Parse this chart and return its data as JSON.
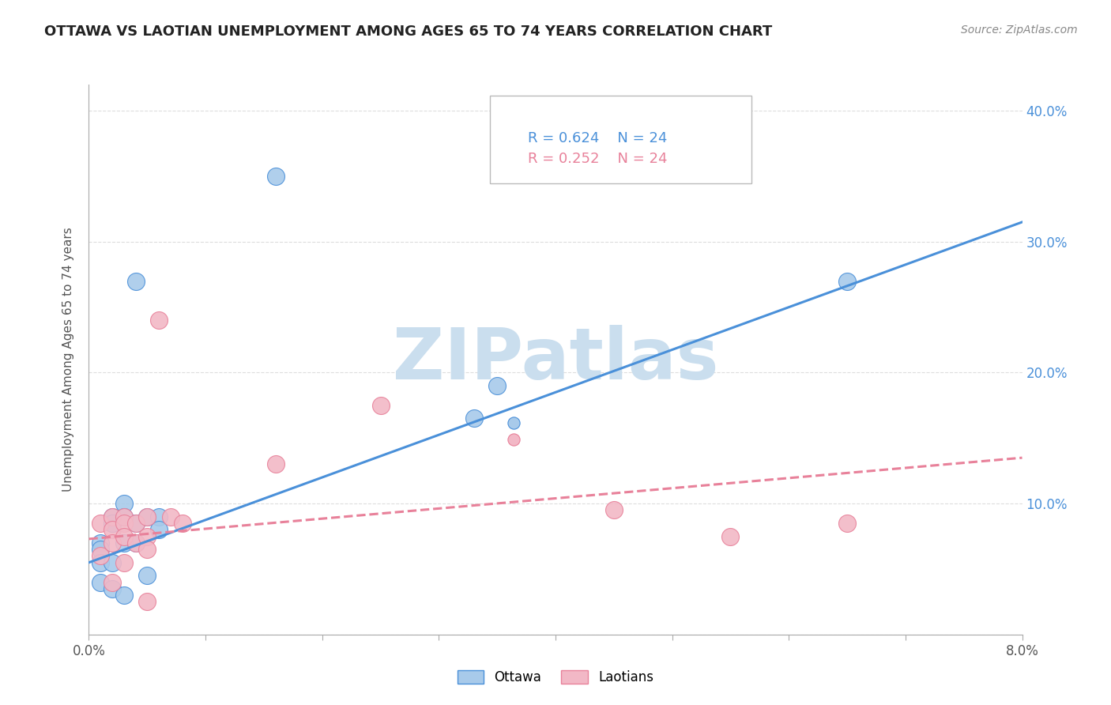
{
  "title": "OTTAWA VS LAOTIAN UNEMPLOYMENT AMONG AGES 65 TO 74 YEARS CORRELATION CHART",
  "source": "Source: ZipAtlas.com",
  "ylabel": "Unemployment Among Ages 65 to 74 years",
  "xlim": [
    0.0,
    0.08
  ],
  "ylim": [
    0.0,
    0.42
  ],
  "xticks": [
    0.0,
    0.01,
    0.02,
    0.03,
    0.04,
    0.05,
    0.06,
    0.07,
    0.08
  ],
  "yticks": [
    0.0,
    0.1,
    0.2,
    0.3,
    0.4
  ],
  "ytick_labels": [
    "",
    "10.0%",
    "20.0%",
    "30.0%",
    "40.0%"
  ],
  "xtick_labels": [
    "0.0%",
    "",
    "",
    "",
    "",
    "",
    "",
    "",
    "8.0%"
  ],
  "ottawa_color": "#A8CAEA",
  "laotian_color": "#F2B8C6",
  "line_ottawa_color": "#4A90D9",
  "line_laotian_color": "#E8819A",
  "watermark_color": "#CADEEE",
  "watermark_text": "ZIPatlas",
  "legend_ottawa_r": "R = 0.624",
  "legend_ottawa_n": "N = 24",
  "legend_laotian_r": "R = 0.252",
  "legend_laotian_n": "N = 24",
  "ottawa_x": [
    0.001,
    0.001,
    0.001,
    0.001,
    0.002,
    0.002,
    0.002,
    0.002,
    0.002,
    0.003,
    0.003,
    0.003,
    0.003,
    0.004,
    0.004,
    0.004,
    0.005,
    0.005,
    0.006,
    0.006,
    0.016,
    0.033,
    0.035,
    0.065
  ],
  "ottawa_y": [
    0.07,
    0.065,
    0.055,
    0.04,
    0.09,
    0.085,
    0.085,
    0.055,
    0.035,
    0.1,
    0.09,
    0.07,
    0.03,
    0.27,
    0.085,
    0.07,
    0.09,
    0.045,
    0.09,
    0.08,
    0.35,
    0.165,
    0.19,
    0.27
  ],
  "laotian_x": [
    0.001,
    0.001,
    0.002,
    0.002,
    0.002,
    0.002,
    0.003,
    0.003,
    0.003,
    0.003,
    0.004,
    0.004,
    0.005,
    0.005,
    0.005,
    0.005,
    0.006,
    0.007,
    0.008,
    0.016,
    0.025,
    0.045,
    0.055,
    0.065
  ],
  "laotian_y": [
    0.085,
    0.06,
    0.09,
    0.08,
    0.07,
    0.04,
    0.09,
    0.085,
    0.075,
    0.055,
    0.085,
    0.07,
    0.09,
    0.075,
    0.065,
    0.025,
    0.24,
    0.09,
    0.085,
    0.13,
    0.175,
    0.095,
    0.075,
    0.085
  ],
  "ottawa_line_x0": 0.0,
  "ottawa_line_y0": 0.055,
  "ottawa_line_x1": 0.08,
  "ottawa_line_y1": 0.315,
  "laotian_line_x0": 0.0,
  "laotian_line_y0": 0.073,
  "laotian_line_x1": 0.08,
  "laotian_line_y1": 0.135,
  "background_color": "#FFFFFF",
  "grid_color": "#DDDDDD"
}
